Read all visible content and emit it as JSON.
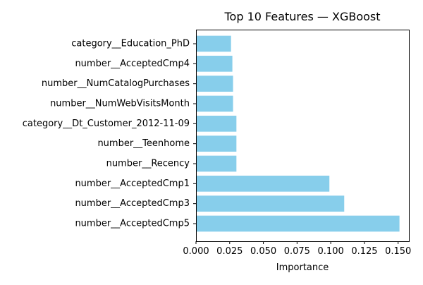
{
  "chart_data": {
    "type": "bar",
    "orientation": "horizontal",
    "title": "Top 10 Features — XGBoost",
    "xlabel": "Importance",
    "ylabel": "",
    "categories": [
      "category__Education_PhD",
      "number__AcceptedCmp4",
      "number__NumCatalogPurchases",
      "number__NumWebVisitsMonth",
      "category__Dt_Customer_2012-11-09",
      "number__Teenhome",
      "number__Recency",
      "number__AcceptedCmp1",
      "number__AcceptedCmp3",
      "number__AcceptedCmp5"
    ],
    "values": [
      0.026,
      0.027,
      0.0275,
      0.0275,
      0.03,
      0.03,
      0.03,
      0.099,
      0.11,
      0.151
    ],
    "xlim": [
      0,
      0.158
    ],
    "xticks": [
      0.0,
      0.025,
      0.05,
      0.075,
      0.1,
      0.125,
      0.15
    ],
    "xtick_labels": [
      "0.000",
      "0.025",
      "0.050",
      "0.075",
      "0.100",
      "0.125",
      "0.150"
    ],
    "grid": false,
    "legend": "none",
    "bar_color": "#87ceeb"
  }
}
